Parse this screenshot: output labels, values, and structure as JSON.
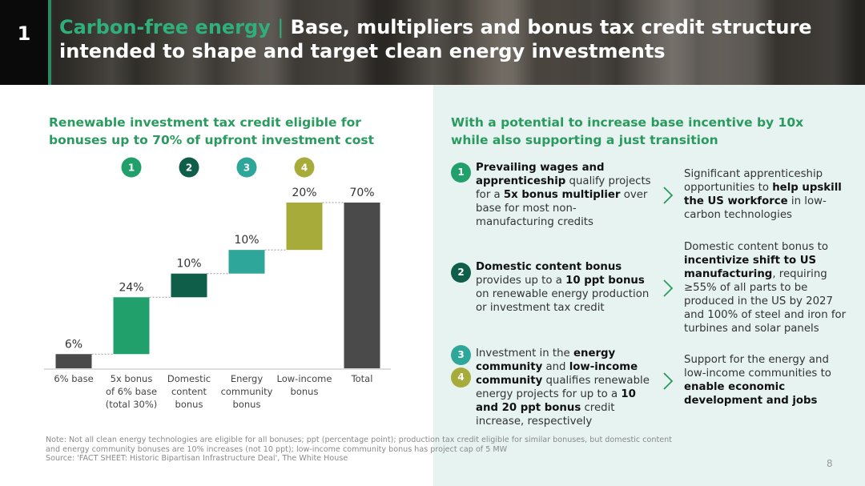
{
  "header": {
    "page_number": "1",
    "title_accent": "Carbon-free energy",
    "title_separator": "|",
    "title_rest": "Base, multipliers and bonus tax credit structure intended to shape and target clean energy investments"
  },
  "left": {
    "section_title": "Renewable investment tax credit eligible for bonuses up to 70% of upfront investment cost"
  },
  "right": {
    "section_title": "With a potential to increase base incentive by 10x while also supporting a just transition",
    "items": [
      {
        "markers": [
          "1"
        ],
        "text_parts": [
          {
            "t": "Prevailing wages and apprenticeship",
            "b": true
          },
          {
            "t": " qualify projects for a ",
            "b": false
          },
          {
            "t": "5x bonus multiplier",
            "b": true
          },
          {
            "t": " over base for most non-manufacturing credits",
            "b": false
          }
        ],
        "impact_parts": [
          {
            "t": "Significant apprenticeship opportunities to ",
            "b": false
          },
          {
            "t": "help upskill the US workforce",
            "b": true
          },
          {
            "t": " in low-carbon technologies",
            "b": false
          }
        ]
      },
      {
        "markers": [
          "2"
        ],
        "text_parts": [
          {
            "t": "Domestic content bonus",
            "b": true
          },
          {
            "t": " provides up to a ",
            "b": false
          },
          {
            "t": "10 ppt bonus",
            "b": true
          },
          {
            "t": " on renewable energy production or investment tax credit",
            "b": false
          }
        ],
        "impact_parts": [
          {
            "t": "Domestic content bonus to ",
            "b": false
          },
          {
            "t": "incentivize shift to US manufacturing",
            "b": true
          },
          {
            "t": ", requiring ≥55% of all parts to be produced in the US by 2027 and 100% of steel and iron for turbines and solar panels",
            "b": false
          }
        ]
      },
      {
        "markers": [
          "3",
          "4"
        ],
        "text_parts": [
          {
            "t": "Investment in the ",
            "b": false
          },
          {
            "t": "energy community",
            "b": true
          },
          {
            "t": " and ",
            "b": false
          },
          {
            "t": "low-income community",
            "b": true
          },
          {
            "t": " qualifies renewable energy projects for up to a ",
            "b": false
          },
          {
            "t": "10 and 20 ppt bonus",
            "b": true
          },
          {
            "t": " credit increase, respectively",
            "b": false
          }
        ],
        "impact_parts": [
          {
            "t": "Support for the energy and low-income communities to ",
            "b": false
          },
          {
            "t": "enable economic development and jobs",
            "b": true
          }
        ]
      }
    ]
  },
  "chart_data": {
    "type": "waterfall",
    "markers": [
      "",
      "1",
      "2",
      "3",
      "4",
      ""
    ],
    "categories": [
      "6% base",
      "5x bonus of 6% base (total 30%)",
      "Domestic content bonus",
      "Energy community bonus",
      "Low-income bonus",
      "Total"
    ],
    "category_lines": [
      [
        "6% base"
      ],
      [
        "5x bonus",
        "of 6% base",
        "(total 30%)"
      ],
      [
        "Domestic",
        "content",
        "bonus"
      ],
      [
        "Energy",
        "community",
        "bonus"
      ],
      [
        "Low-income",
        "bonus"
      ],
      [
        "Total"
      ]
    ],
    "values": [
      6,
      24,
      10,
      10,
      20,
      70
    ],
    "labels": [
      "6%",
      "24%",
      "10%",
      "10%",
      "20%",
      "70%"
    ],
    "bar_kinds": [
      "total",
      "step",
      "step",
      "step",
      "step",
      "total"
    ],
    "ylim": [
      0,
      70
    ],
    "colors": [
      "#4a4a4a",
      "#22a06b",
      "#0f5e4a",
      "#2ea699",
      "#a7ab3a",
      "#4a4a4a"
    ],
    "marker_colors": [
      "",
      "#22a06b",
      "#0f5e4a",
      "#2ea699",
      "#a7ab3a",
      ""
    ]
  },
  "footer": {
    "note": "Note: Not all clean energy technologies are eligible for all bonuses; ppt (percentage point); production tax credit eligible for similar bonuses, but domestic content and energy community bonuses are 10% increases (not 10 ppt); low-income community bonus has project cap of 5 MW",
    "source": "Source: 'FACT SHEET: Historic Bipartisan Infrastructure Deal', The White House",
    "page": "8"
  }
}
